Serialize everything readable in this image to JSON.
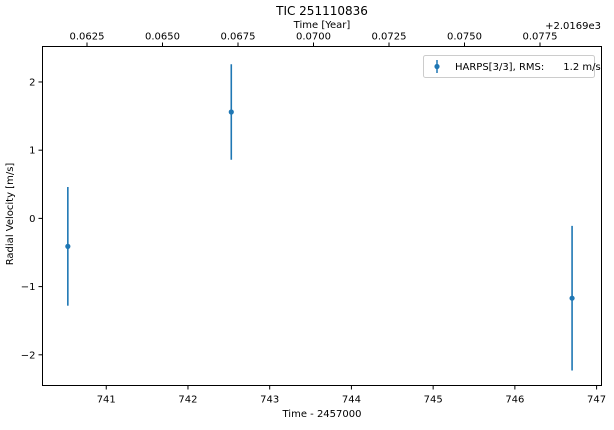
{
  "chart_data": {
    "type": "scatter",
    "title": "TIC 251110836",
    "xlabel": "Time - 2457000",
    "ylabel": "Radial Velocity [m/s]",
    "top_xlabel": "Time [Year]",
    "top_offset_label": "+2.0169e3",
    "xlim": [
      740.22,
      747.06
    ],
    "ylim": [
      -2.45,
      2.52
    ],
    "x_ticks": [
      741,
      742,
      743,
      744,
      745,
      746,
      747
    ],
    "y_ticks": [
      -2,
      -1,
      0,
      1,
      2
    ],
    "top_ticks": [
      "0.0625",
      "0.0650",
      "0.0675",
      "0.0700",
      "0.0725",
      "0.0750",
      "0.0775"
    ],
    "legend_placement": "top-right",
    "series": [
      {
        "name": "HARPS[3/3], RMS:      1.2 m/s",
        "color": "#1f77b4",
        "x": [
          740.53,
          742.53,
          746.7
        ],
        "y": [
          -0.41,
          1.56,
          -1.17
        ],
        "yerr": [
          0.87,
          0.7,
          1.06
        ]
      }
    ]
  }
}
